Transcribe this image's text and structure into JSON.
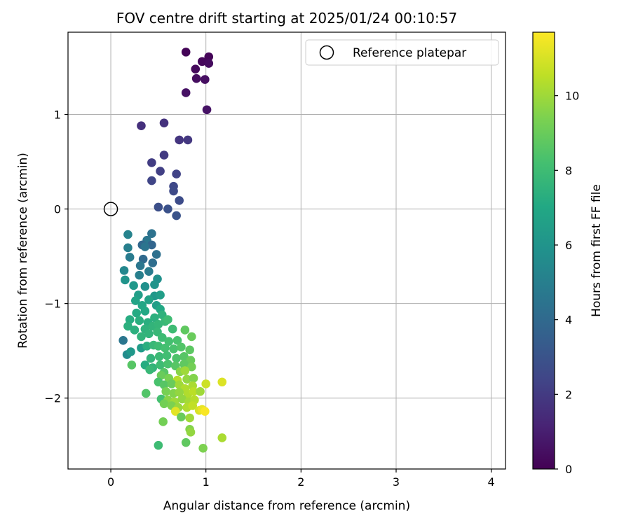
{
  "chart_data": {
    "type": "scatter",
    "title": "FOV centre drift starting at 2025/01/24 00:10:57",
    "xlabel": "Angular distance from reference (arcmin)",
    "ylabel": "Rotation from reference (arcmin)",
    "xlim": [
      -0.45,
      4.15
    ],
    "ylim": [
      -2.75,
      1.87
    ],
    "xticks": [
      0,
      1,
      2,
      3,
      4
    ],
    "yticks": [
      -2,
      -1,
      0,
      1
    ],
    "grid": true,
    "legend": {
      "placement": "top-right",
      "entries": [
        "Reference platepar"
      ]
    },
    "reference_point": {
      "x": 0,
      "y": 0,
      "label": "Reference platepar"
    },
    "colorbar": {
      "label": "Hours from first FF file",
      "range": [
        0,
        11.7
      ],
      "ticks": [
        0,
        2,
        4,
        6,
        8,
        10
      ],
      "colormap": "viridis"
    },
    "points": [
      [
        0.79,
        1.66,
        0.1
      ],
      [
        1.03,
        1.61,
        0.15
      ],
      [
        0.96,
        1.56,
        0.2
      ],
      [
        0.89,
        1.48,
        0.3
      ],
      [
        1.03,
        1.54,
        0.35
      ],
      [
        0.9,
        1.38,
        0.4
      ],
      [
        0.99,
        1.37,
        0.45
      ],
      [
        0.79,
        1.23,
        0.55
      ],
      [
        1.01,
        1.05,
        0.6
      ],
      [
        0.32,
        0.88,
        1.6
      ],
      [
        0.56,
        0.91,
        1.7
      ],
      [
        0.72,
        0.73,
        1.8
      ],
      [
        0.81,
        0.73,
        1.9
      ],
      [
        0.56,
        0.57,
        2.0
      ],
      [
        0.43,
        0.49,
        2.1
      ],
      [
        0.52,
        0.4,
        2.2
      ],
      [
        0.69,
        0.37,
        2.3
      ],
      [
        0.43,
        0.3,
        2.4
      ],
      [
        0.66,
        0.24,
        2.5
      ],
      [
        0.66,
        0.19,
        2.6
      ],
      [
        0.72,
        0.09,
        2.7
      ],
      [
        0.5,
        0.02,
        2.8
      ],
      [
        0.6,
        0.0,
        2.9
      ],
      [
        0.69,
        -0.07,
        3.0
      ],
      [
        0.43,
        -0.26,
        4.4
      ],
      [
        0.38,
        -0.33,
        4.6
      ],
      [
        0.33,
        -0.38,
        3.9
      ],
      [
        0.43,
        -0.38,
        3.8
      ],
      [
        0.36,
        -0.4,
        4.5
      ],
      [
        0.48,
        -0.48,
        4.3
      ],
      [
        0.34,
        -0.53,
        4.0
      ],
      [
        0.44,
        -0.57,
        4.2
      ],
      [
        0.31,
        -0.6,
        4.6
      ],
      [
        0.4,
        -0.66,
        4.8
      ],
      [
        0.3,
        -0.7,
        5.0
      ],
      [
        0.18,
        -0.27,
        5.2
      ],
      [
        0.18,
        -0.41,
        5.0
      ],
      [
        0.2,
        -0.51,
        4.8
      ],
      [
        0.14,
        -0.65,
        5.4
      ],
      [
        0.15,
        -0.75,
        6.0
      ],
      [
        0.49,
        -0.74,
        5.8
      ],
      [
        0.46,
        -0.8,
        6.0
      ],
      [
        0.36,
        -0.82,
        5.8
      ],
      [
        0.24,
        -0.81,
        6.2
      ],
      [
        0.29,
        -0.91,
        6.5
      ],
      [
        0.46,
        -0.92,
        6.2
      ],
      [
        0.52,
        -0.91,
        6.5
      ],
      [
        0.4,
        -0.96,
        6.7
      ],
      [
        0.26,
        -0.97,
        6.8
      ],
      [
        0.33,
        -1.02,
        6.9
      ],
      [
        0.48,
        -1.02,
        6.5
      ],
      [
        0.52,
        -1.06,
        7.0
      ],
      [
        0.36,
        -1.08,
        7.0
      ],
      [
        0.27,
        -1.1,
        7.1
      ],
      [
        0.2,
        -1.17,
        7.2
      ],
      [
        0.3,
        -1.18,
        7.3
      ],
      [
        0.39,
        -1.2,
        7.3
      ],
      [
        0.46,
        -1.15,
        7.4
      ],
      [
        0.54,
        -1.12,
        7.5
      ],
      [
        0.18,
        -1.24,
        7.4
      ],
      [
        0.25,
        -1.28,
        7.4
      ],
      [
        0.36,
        -1.27,
        7.5
      ],
      [
        0.44,
        -1.24,
        7.6
      ],
      [
        0.5,
        -1.22,
        7.7
      ],
      [
        0.57,
        -1.19,
        7.8
      ],
      [
        0.6,
        -1.17,
        8.0
      ],
      [
        0.65,
        -1.27,
        8.0
      ],
      [
        0.32,
        -1.35,
        7.6
      ],
      [
        0.4,
        -1.32,
        7.6
      ],
      [
        0.49,
        -1.3,
        7.8
      ],
      [
        0.54,
        -1.36,
        8.0
      ],
      [
        0.61,
        -1.4,
        8.2
      ],
      [
        0.7,
        -1.39,
        8.3
      ],
      [
        0.78,
        -1.28,
        8.8
      ],
      [
        0.85,
        -1.35,
        9.0
      ],
      [
        0.13,
        -1.39,
        4.6
      ],
      [
        0.17,
        -1.54,
        5.6
      ],
      [
        0.21,
        -1.51,
        6.2
      ],
      [
        0.32,
        -1.47,
        6.4
      ],
      [
        0.38,
        -1.45,
        7.3
      ],
      [
        0.45,
        -1.44,
        7.8
      ],
      [
        0.5,
        -1.45,
        8.0
      ],
      [
        0.57,
        -1.47,
        8.2
      ],
      [
        0.66,
        -1.48,
        8.3
      ],
      [
        0.74,
        -1.46,
        8.5
      ],
      [
        0.83,
        -1.49,
        8.7
      ],
      [
        0.42,
        -1.58,
        7.6
      ],
      [
        0.51,
        -1.56,
        7.9
      ],
      [
        0.59,
        -1.55,
        8.1
      ],
      [
        0.69,
        -1.58,
        8.4
      ],
      [
        0.77,
        -1.56,
        8.6
      ],
      [
        0.84,
        -1.6,
        9.0
      ],
      [
        0.36,
        -1.65,
        7.2
      ],
      [
        0.44,
        -1.68,
        7.6
      ],
      [
        0.22,
        -1.65,
        8.6
      ],
      [
        0.52,
        -1.65,
        8.0
      ],
      [
        0.6,
        -1.64,
        8.3
      ],
      [
        0.68,
        -1.66,
        8.6
      ],
      [
        0.77,
        -1.64,
        8.8
      ],
      [
        0.85,
        -1.67,
        9.2
      ],
      [
        0.41,
        -1.7,
        7.8
      ],
      [
        0.56,
        -1.73,
        8.6
      ],
      [
        0.73,
        -1.72,
        9.6
      ],
      [
        0.78,
        -1.71,
        10.0
      ],
      [
        0.53,
        -1.76,
        9.0
      ],
      [
        0.61,
        -1.79,
        9.3
      ],
      [
        0.7,
        -1.81,
        10.4
      ],
      [
        0.8,
        -1.8,
        9.8
      ],
      [
        0.87,
        -1.79,
        9.5
      ],
      [
        0.5,
        -1.83,
        8.3
      ],
      [
        0.56,
        -1.86,
        8.6
      ],
      [
        0.64,
        -1.85,
        9.0
      ],
      [
        0.72,
        -1.86,
        10.0
      ],
      [
        0.78,
        -1.9,
        10.3
      ],
      [
        0.86,
        -1.87,
        10.2
      ],
      [
        1.0,
        -1.85,
        10.8
      ],
      [
        1.17,
        -1.83,
        11.1
      ],
      [
        0.58,
        -1.93,
        9.3
      ],
      [
        0.66,
        -1.95,
        9.5
      ],
      [
        0.72,
        -1.94,
        9.8
      ],
      [
        0.81,
        -1.96,
        10.3
      ],
      [
        0.87,
        -1.93,
        10.5
      ],
      [
        0.94,
        -1.93,
        10.0
      ],
      [
        0.37,
        -1.95,
        8.5
      ],
      [
        0.53,
        -2.01,
        8.2
      ],
      [
        0.6,
        -2.02,
        9.6
      ],
      [
        0.67,
        -2.04,
        10.0
      ],
      [
        0.75,
        -2.01,
        9.8
      ],
      [
        0.82,
        -2.04,
        10.1
      ],
      [
        0.88,
        -2.02,
        10.4
      ],
      [
        0.56,
        -2.06,
        9.2
      ],
      [
        0.64,
        -2.08,
        9.4
      ],
      [
        0.71,
        -2.1,
        9.9
      ],
      [
        0.8,
        -2.1,
        10.3
      ],
      [
        0.86,
        -2.08,
        10.6
      ],
      [
        0.68,
        -2.14,
        11.2
      ],
      [
        0.93,
        -2.13,
        11.0
      ],
      [
        0.96,
        -2.12,
        11.3
      ],
      [
        0.99,
        -2.14,
        11.6
      ],
      [
        0.74,
        -2.2,
        9.0
      ],
      [
        0.83,
        -2.21,
        10.0
      ],
      [
        0.55,
        -2.25,
        9.2
      ],
      [
        0.83,
        -2.33,
        9.5
      ],
      [
        0.84,
        -2.36,
        9.8
      ],
      [
        1.17,
        -2.42,
        10.2
      ],
      [
        0.79,
        -2.47,
        8.8
      ],
      [
        0.5,
        -2.5,
        8.0
      ],
      [
        0.97,
        -2.53,
        9.4
      ]
    ]
  }
}
